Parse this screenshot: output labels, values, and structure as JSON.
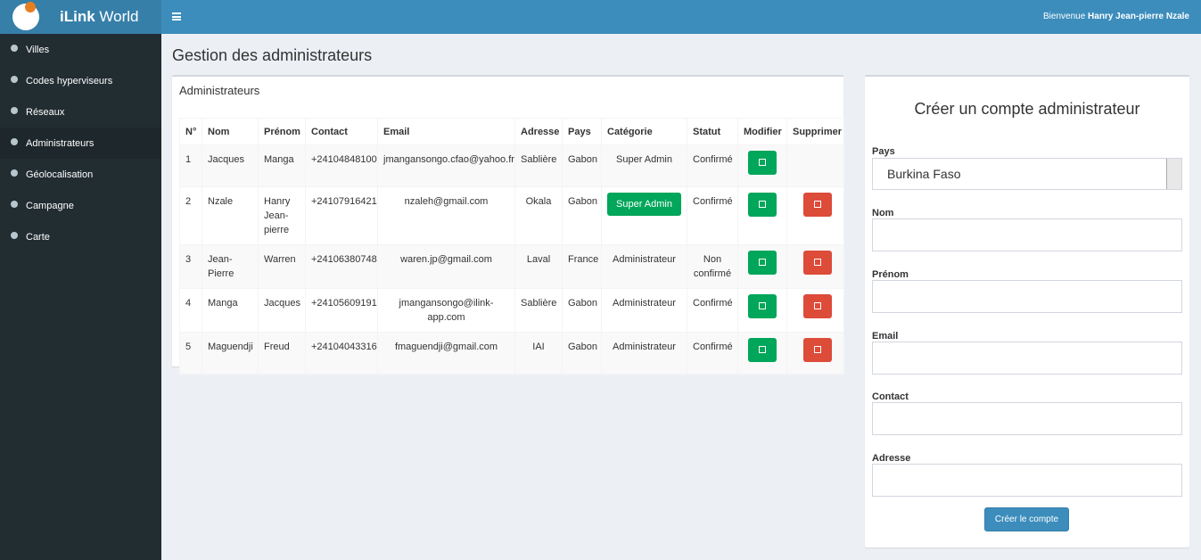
{
  "header": {
    "brand_bold": "iLink",
    "brand": "World",
    "welcome": "Bienvenue",
    "user": "Hanry Jean-pierre Nzale"
  },
  "sidebar": {
    "items": [
      "Villes",
      "Codes hyperviseurs",
      "Réseaux",
      "Administrateurs",
      "Géolocalisation",
      "Campagne",
      "Carte"
    ]
  },
  "page": {
    "title": "Gestion des administrateurs"
  },
  "table": {
    "title": "Administrateurs",
    "columns": [
      "N°",
      "Nom",
      "Prénom",
      "Contact",
      "Email",
      "Adresse",
      "Pays",
      "Catégorie",
      "Statut",
      "Modifier",
      "Supprimer"
    ],
    "rows": [
      [
        "1",
        "Jacques",
        "Manga",
        "+24104848100",
        "jmangansongo.cfao@yahoo.fr",
        "Sablière",
        "Gabon",
        "Super Admin",
        "Confirmé"
      ],
      [
        "2",
        "Nzale",
        "Hanry Jean-pierre",
        "+24107916421",
        "nzaleh@gmail.com",
        "Okala",
        "Gabon",
        "Super Admin",
        "Confirmé"
      ],
      [
        "3",
        "Jean-Pierre",
        "Warren",
        "+24106380748",
        "waren.jp@gmail.com",
        "Laval",
        "France",
        "Administrateur",
        "Non confirmé"
      ],
      [
        "4",
        "Manga",
        "Jacques",
        "+24105609191",
        "jmangansongo@ilink-app.com",
        "Sablière",
        "Gabon",
        "Administrateur",
        "Confirmé"
      ],
      [
        "5",
        "Maguendji",
        "Freud",
        "+24104043316",
        "fmaguendji@gmail.com",
        "IAI",
        "Gabon",
        "Administrateur",
        "Confirmé"
      ]
    ]
  },
  "form": {
    "title": "Créer un compte administrateur",
    "fields": [
      {
        "label": "Pays",
        "value": "Burkina Faso"
      },
      {
        "label": "Nom"
      },
      {
        "label": "Prénom"
      },
      {
        "label": "Email"
      },
      {
        "label": "Contact"
      },
      {
        "label": "Adresse"
      }
    ],
    "submit": "Créer le compte"
  }
}
